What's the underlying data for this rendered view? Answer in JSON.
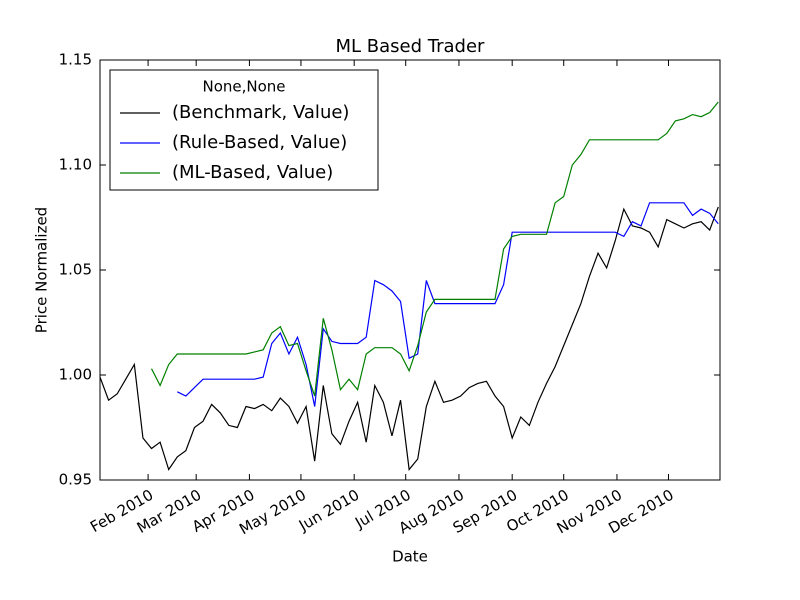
{
  "chart_data": {
    "type": "line",
    "title": "ML Based Trader",
    "xlabel": "Date",
    "ylabel": "Price Normalized",
    "legend_title": "None,None",
    "legend": "upper left",
    "grid": false,
    "x": [
      3,
      8,
      13,
      18,
      23,
      28,
      33,
      38,
      43,
      48,
      53,
      58,
      63,
      68,
      73,
      78,
      83,
      88,
      93,
      98,
      103,
      108,
      113,
      118,
      123,
      128,
      133,
      138,
      143,
      148,
      153,
      158,
      163,
      168,
      173,
      178,
      183,
      188,
      193,
      198,
      203,
      208,
      213,
      218,
      223,
      228,
      233,
      238,
      243,
      248,
      253,
      258,
      263,
      268,
      273,
      278,
      283,
      288,
      293,
      298,
      303,
      308,
      313,
      318,
      323,
      328,
      333,
      338,
      343,
      348,
      353,
      358,
      363
    ],
    "xlim": [
      3,
      364
    ],
    "xticks": [
      {
        "value": 31,
        "label": "Feb 2010"
      },
      {
        "value": 59,
        "label": "Mar 2010"
      },
      {
        "value": 90,
        "label": "Apr 2010"
      },
      {
        "value": 120,
        "label": "May 2010"
      },
      {
        "value": 151,
        "label": "Jun 2010"
      },
      {
        "value": 181,
        "label": "Jul 2010"
      },
      {
        "value": 212,
        "label": "Aug 2010"
      },
      {
        "value": 243,
        "label": "Sep 2010"
      },
      {
        "value": 273,
        "label": "Oct 2010"
      },
      {
        "value": 304,
        "label": "Nov 2010"
      },
      {
        "value": 334,
        "label": "Dec 2010"
      }
    ],
    "ylim": [
      0.95,
      1.15
    ],
    "yticks": [
      0.95,
      {
        "value": 1,
        "label": "1.00"
      },
      1.05,
      {
        "value": 1.1,
        "label": "1.10"
      },
      1.15
    ],
    "series": [
      {
        "name": "(Benchmark, Value)",
        "color": "#000000",
        "values": [
          0.999,
          0.988,
          0.991,
          0.998,
          1.005,
          0.97,
          0.965,
          0.968,
          0.955,
          0.961,
          0.964,
          0.975,
          0.978,
          0.986,
          0.982,
          0.976,
          0.975,
          0.985,
          0.984,
          0.986,
          0.983,
          0.989,
          0.985,
          0.977,
          0.985,
          0.959,
          0.995,
          0.972,
          0.967,
          0.978,
          0.987,
          0.968,
          0.995,
          0.987,
          0.971,
          0.988,
          0.955,
          0.96,
          0.985,
          0.997,
          0.987,
          0.988,
          0.99,
          0.994,
          0.996,
          0.997,
          0.99,
          0.985,
          0.97,
          0.98,
          0.976,
          0.987,
          0.996,
          1.004,
          1.014,
          1.024,
          1.034,
          1.047,
          1.058,
          1.051,
          1.064,
          1.079,
          1.071,
          1.07,
          1.068,
          1.061,
          1.074,
          1.072,
          1.07,
          1.072,
          1.073,
          1.069,
          1.08
        ]
      },
      {
        "name": "(Rule-Based, Value)",
        "color": "#0000ff",
        "values": [
          null,
          null,
          null,
          null,
          null,
          null,
          null,
          null,
          null,
          0.992,
          0.99,
          0.994,
          0.998,
          0.998,
          0.998,
          0.998,
          0.998,
          0.998,
          0.998,
          0.999,
          1.015,
          1.02,
          1.01,
          1.018,
          1.005,
          0.985,
          1.022,
          1.016,
          1.015,
          1.015,
          1.015,
          1.018,
          1.045,
          1.043,
          1.04,
          1.035,
          1.008,
          1.01,
          1.045,
          1.034,
          1.034,
          1.034,
          1.034,
          1.034,
          1.034,
          1.034,
          1.034,
          1.043,
          1.068,
          1.068,
          1.068,
          1.068,
          1.068,
          1.068,
          1.068,
          1.068,
          1.068,
          1.068,
          1.068,
          1.068,
          1.068,
          1.066,
          1.073,
          1.071,
          1.082,
          1.082,
          1.082,
          1.082,
          1.082,
          1.076,
          1.079,
          1.077,
          1.072
        ]
      },
      {
        "name": "(ML-Based, Value)",
        "color": "#008000",
        "values": [
          null,
          null,
          null,
          null,
          null,
          null,
          1.003,
          0.995,
          1.005,
          1.01,
          1.01,
          1.01,
          1.01,
          1.01,
          1.01,
          1.01,
          1.01,
          1.01,
          1.011,
          1.012,
          1.02,
          1.023,
          1.014,
          1.015,
          1.002,
          0.99,
          1.027,
          1.012,
          0.993,
          0.998,
          0.993,
          1.01,
          1.013,
          1.013,
          1.013,
          1.01,
          1.002,
          1.014,
          1.03,
          1.036,
          1.036,
          1.036,
          1.036,
          1.036,
          1.036,
          1.036,
          1.036,
          1.06,
          1.066,
          1.067,
          1.067,
          1.067,
          1.067,
          1.082,
          1.085,
          1.1,
          1.105,
          1.112,
          1.112,
          1.112,
          1.112,
          1.112,
          1.112,
          1.112,
          1.112,
          1.112,
          1.115,
          1.121,
          1.122,
          1.124,
          1.123,
          1.125,
          1.13
        ]
      }
    ]
  }
}
